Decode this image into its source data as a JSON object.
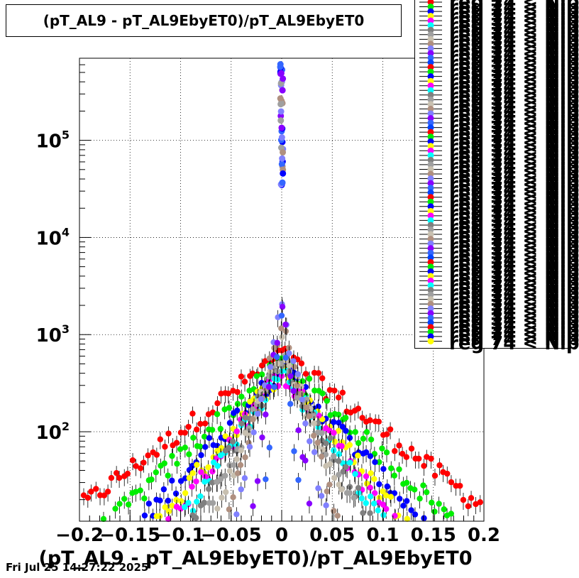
{
  "chart_data": {
    "type": "scatter",
    "title": "(pT_AL9 - pT_AL9EbyET0)/pT_AL9EbyET0",
    "xlabel": "(pT_AL9 - pT_AL9EbyET0)/pT_AL9EbyET0",
    "ylabel": "",
    "xlim": [
      -0.2,
      0.2
    ],
    "ylim": [
      12,
      700000
    ],
    "y_scale": "log",
    "grid": true,
    "x_ticks": [
      "−0.2",
      "−0.15",
      "−0.1",
      "−0.05",
      "0",
      "0.05",
      "0.1",
      "0.15",
      "0.2"
    ],
    "x_tick_values": [
      -0.2,
      -0.15,
      -0.1,
      -0.05,
      0,
      0.05,
      0.1,
      0.15,
      0.2
    ],
    "y_ticks": [
      {
        "value": 100,
        "base": "10",
        "exp": "2"
      },
      {
        "value": 1000,
        "base": "10",
        "exp": "3"
      },
      {
        "value": 10000,
        "base": "10",
        "exp": "4"
      },
      {
        "value": 100000,
        "base": "10",
        "exp": "5"
      }
    ],
    "legend_placement": "top-right",
    "legend_visible_label": "reg 74 < Nip",
    "series_colors": [
      "#ff0000",
      "#00ee00",
      "#0000ff",
      "#ffff00",
      "#ff00ff",
      "#00ffff",
      "#808080",
      "#a0a0a0",
      "#c8c0b0",
      "#b09080",
      "#8080ff",
      "#8800ff",
      "#3366ff",
      "#0044ff"
    ],
    "series": [
      {
        "color": "#ff0000",
        "peak": 600,
        "width": 0.055
      },
      {
        "color": "#00ee00",
        "peak": 500,
        "width": 0.045
      },
      {
        "color": "#0000ff",
        "peak": 450,
        "width": 0.038
      },
      {
        "color": "#ffff00",
        "peak": 420,
        "width": 0.034
      },
      {
        "color": "#ff00ff",
        "peak": 400,
        "width": 0.031
      },
      {
        "color": "#00ffff",
        "peak": 420,
        "width": 0.028
      },
      {
        "color": "#808080",
        "peak": 500,
        "width": 0.024
      },
      {
        "color": "#a0a0a0",
        "peak": 600,
        "width": 0.02
      },
      {
        "color": "#c8c0b0",
        "peak": 800,
        "width": 0.016
      },
      {
        "color": "#b09080",
        "peak": 1200,
        "width": 0.012
      },
      {
        "color": "#8080ff",
        "peak": 1800,
        "width": 0.009
      },
      {
        "color": "#8800ff",
        "peak": 2000,
        "width": 0.006
      },
      {
        "color": "#3366ff",
        "peak": 1600,
        "width": 0.004
      }
    ],
    "center_spike": {
      "x": 0,
      "y_min": 33000,
      "y_max": 620000
    }
  },
  "footer": {
    "timestamp": "Fri Jul 25 14:27:22 2025"
  }
}
